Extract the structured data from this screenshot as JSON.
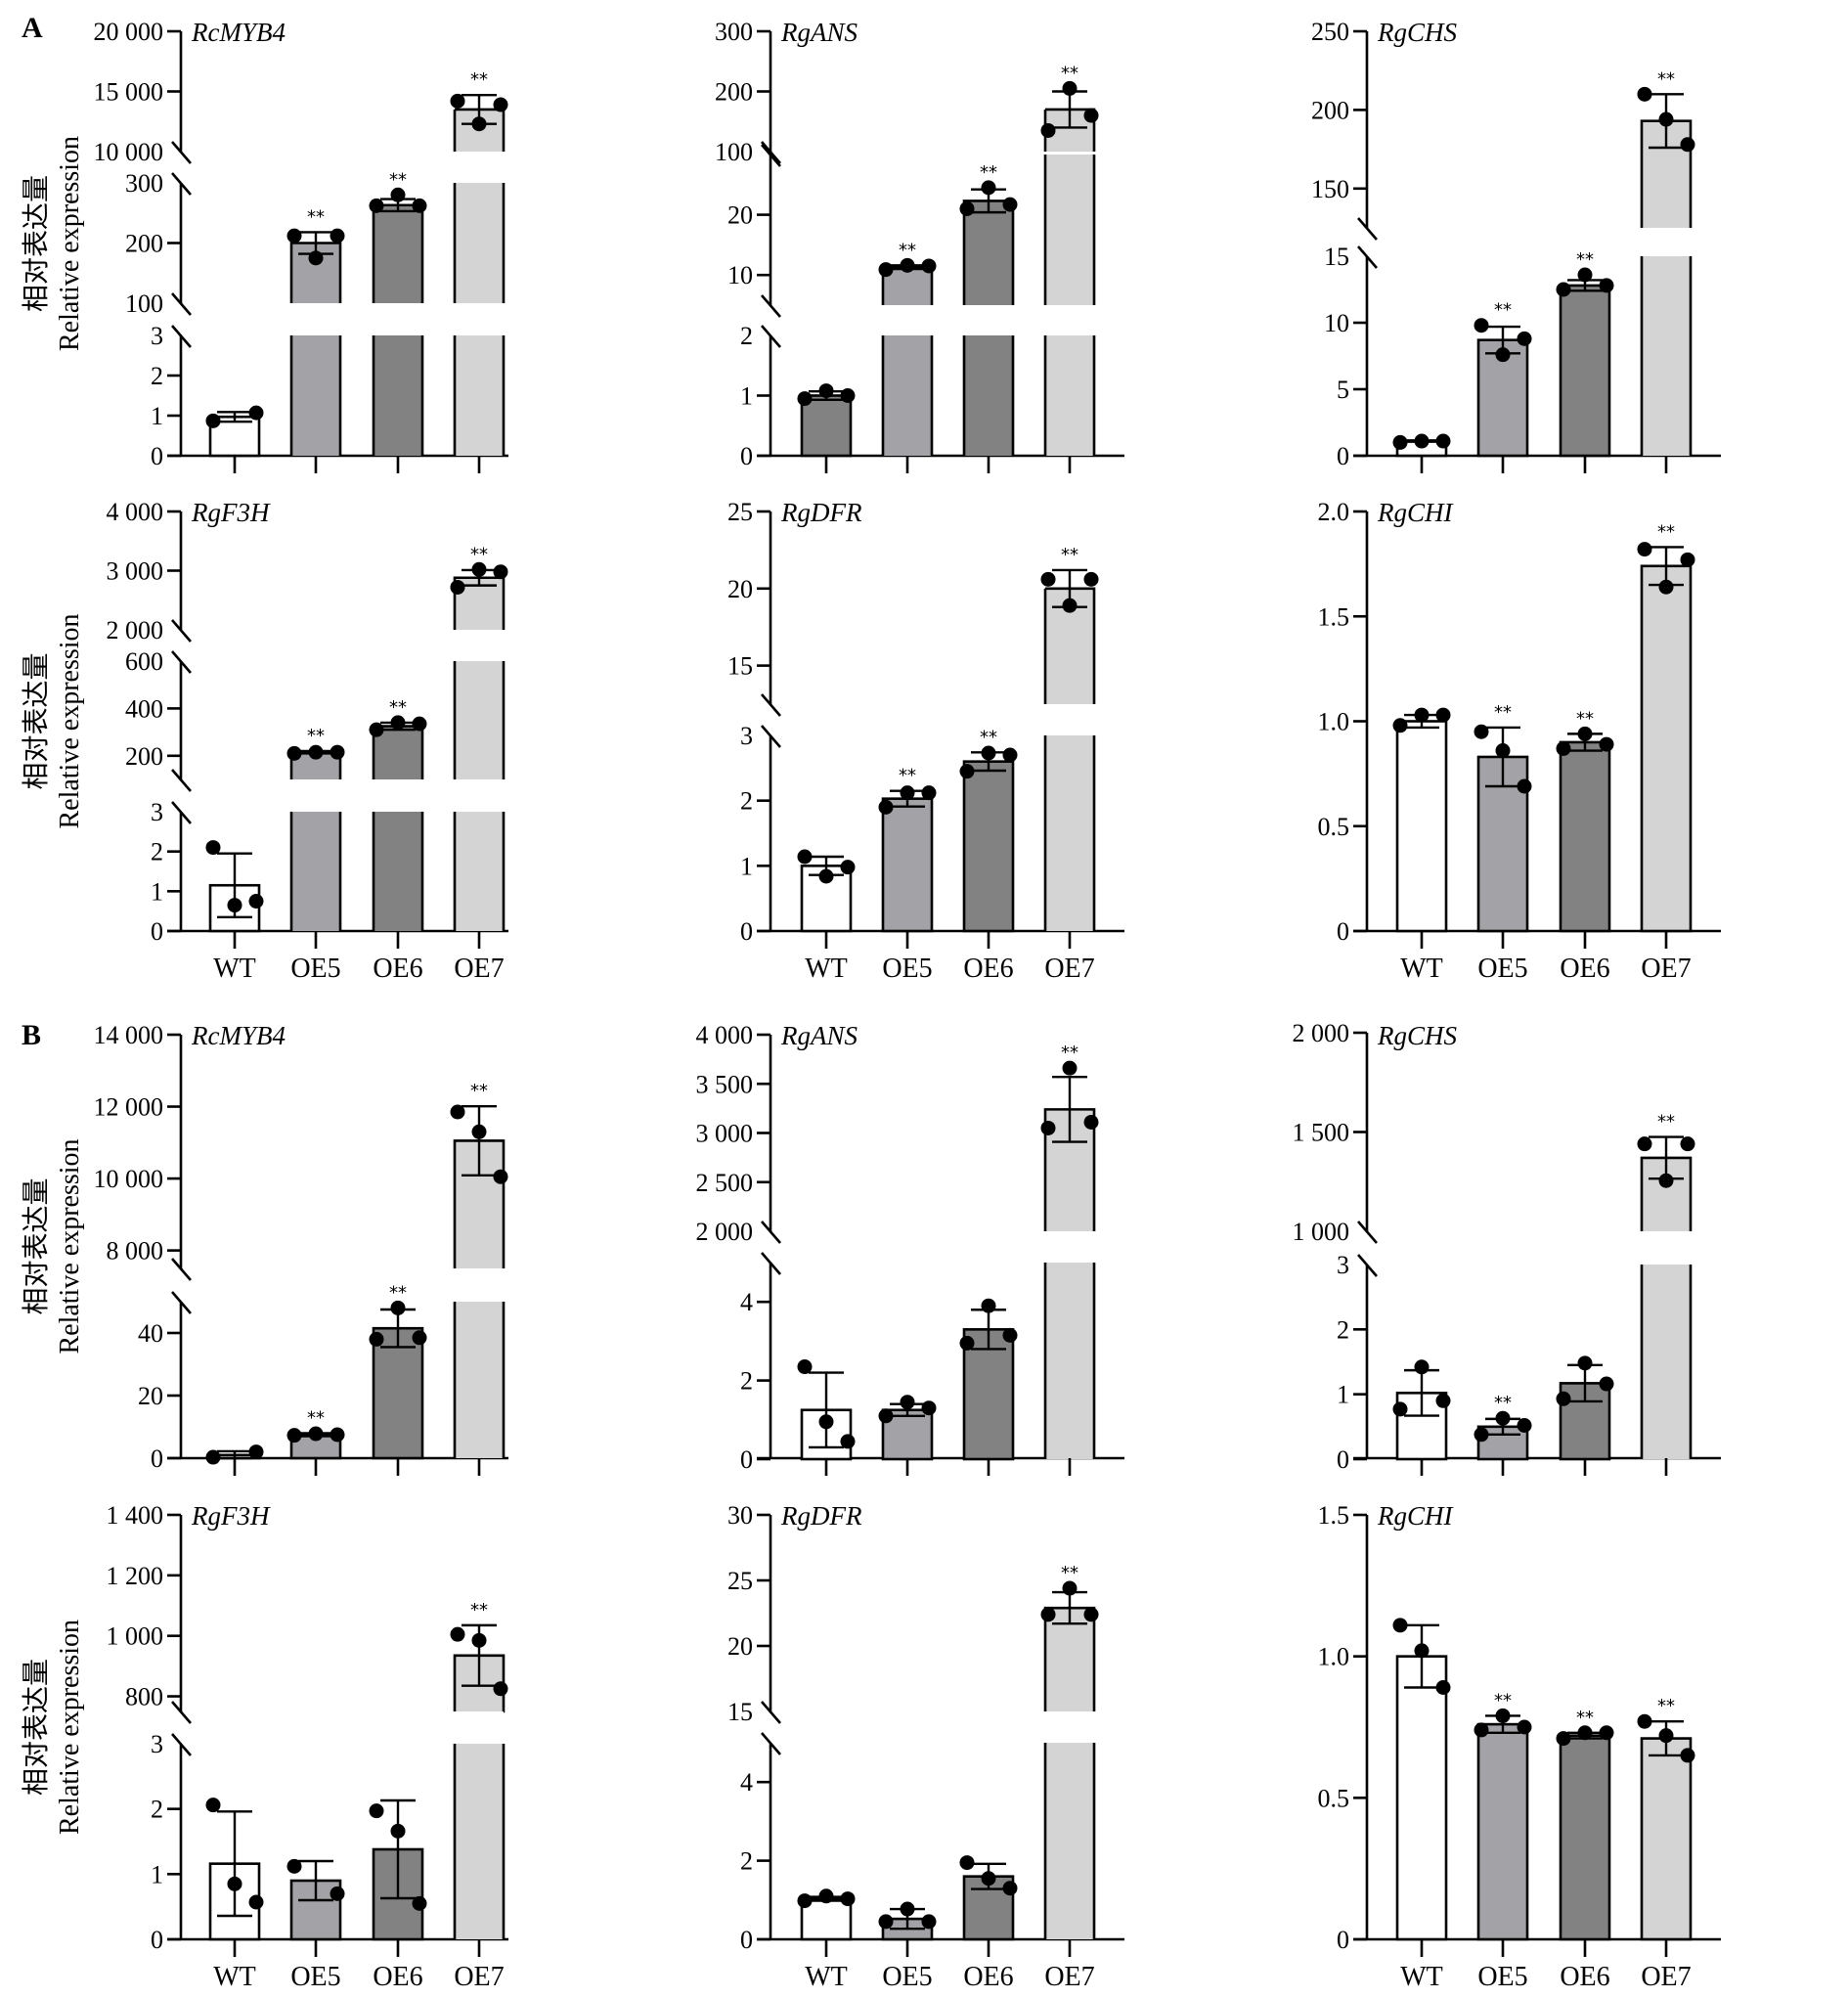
{
  "figure": {
    "y_axis_label_cn": "相对表达量",
    "y_axis_label_en": "Relative expression",
    "significance_mark": "**",
    "categories": [
      "WT",
      "OE5",
      "OE6",
      "OE7"
    ],
    "bar_colors": {
      "white": "#ffffff",
      "light_gray": "#a3a3a7",
      "dark_gray": "#828282",
      "pale_gray": "#d4d4d4"
    }
  },
  "chart_data": [
    {
      "panel": "A",
      "gene": "RcMYB4",
      "type": "bar",
      "categories": [
        "WT",
        "OE5",
        "OE6",
        "OE7"
      ],
      "colors": [
        "#ffffff",
        "#a3a3a7",
        "#828282",
        "#d4d4d4"
      ],
      "values": [
        0.97,
        200,
        263,
        13500
      ],
      "errors": [
        0.12,
        18,
        10,
        1200
      ],
      "points": [
        [
          0.87,
          1.07
        ],
        [
          212,
          175,
          212
        ],
        [
          262,
          280,
          262
        ],
        [
          14200,
          12300,
          13900
        ]
      ],
      "significant": [
        false,
        true,
        true,
        true
      ],
      "y_segments": [
        {
          "range": [
            0,
            3
          ],
          "ticks": [
            0,
            1,
            2,
            3
          ],
          "tick_labels": [
            "0",
            "1",
            "2",
            "3"
          ]
        },
        {
          "range": [
            100,
            300
          ],
          "ticks": [
            100,
            200,
            300
          ],
          "tick_labels": [
            "100",
            "200",
            "300"
          ]
        },
        {
          "range": [
            10000,
            20000
          ],
          "ticks": [
            10000,
            15000,
            20000
          ],
          "tick_labels": [
            "10 000",
            "15 000",
            "20 000"
          ]
        }
      ],
      "ylabel": "相对表达量 Relative expression",
      "show_xlabels": false
    },
    {
      "panel": "A",
      "gene": "RgANS",
      "type": "bar",
      "categories": [
        "WT",
        "OE5",
        "OE6",
        "OE7"
      ],
      "colors": [
        "#828282",
        "#a3a3a7",
        "#828282",
        "#d4d4d4"
      ],
      "values": [
        1.0,
        11.3,
        22.3,
        170
      ],
      "errors": [
        0.07,
        0.3,
        1.9,
        30
      ],
      "points": [
        [
          0.95,
          1.08,
          1.0
        ],
        [
          10.9,
          11.6,
          11.5
        ],
        [
          21.0,
          24.5,
          21.7
        ],
        [
          135,
          205,
          160
        ]
      ],
      "significant": [
        false,
        true,
        true,
        true
      ],
      "y_segments": [
        {
          "range": [
            0,
            2
          ],
          "ticks": [
            0,
            1,
            2
          ],
          "tick_labels": [
            "0",
            "1",
            "2"
          ]
        },
        {
          "range": [
            5,
            30
          ],
          "ticks": [
            10,
            20
          ],
          "tick_labels": [
            "10",
            "20"
          ]
        },
        {
          "range": [
            100,
            300
          ],
          "ticks": [
            100,
            200,
            300
          ],
          "tick_labels": [
            "100",
            "200",
            "300"
          ]
        }
      ],
      "show_xlabels": false
    },
    {
      "panel": "A",
      "gene": "RgCHS",
      "type": "bar",
      "categories": [
        "WT",
        "OE5",
        "OE6",
        "OE7"
      ],
      "colors": [
        "#ffffff",
        "#a3a3a7",
        "#828282",
        "#d4d4d4"
      ],
      "values": [
        1.1,
        8.7,
        12.8,
        193
      ],
      "errors": [
        0.05,
        1.0,
        0.4,
        17
      ],
      "points": [
        [
          1.0,
          1.1,
          1.1
        ],
        [
          9.8,
          7.6,
          8.8
        ],
        [
          12.5,
          13.6,
          12.8
        ],
        [
          210,
          194,
          178
        ]
      ],
      "significant": [
        false,
        true,
        true,
        true
      ],
      "y_segments": [
        {
          "range": [
            0,
            15
          ],
          "ticks": [
            0,
            5,
            10,
            15
          ],
          "tick_labels": [
            "0",
            "5",
            "10",
            "15"
          ]
        },
        {
          "range": [
            125,
            250
          ],
          "ticks": [
            150,
            200,
            250
          ],
          "tick_labels": [
            "150",
            "200",
            "250"
          ]
        }
      ],
      "show_xlabels": false
    },
    {
      "panel": "A",
      "gene": "RgF3H",
      "type": "bar",
      "categories": [
        "WT",
        "OE5",
        "OE6",
        "OE7"
      ],
      "colors": [
        "#ffffff",
        "#a3a3a7",
        "#828282",
        "#d4d4d4"
      ],
      "values": [
        1.15,
        215,
        325,
        2880
      ],
      "errors": [
        0.8,
        5,
        15,
        130
      ],
      "points": [
        [
          2.1,
          0.65,
          0.75
        ],
        [
          210,
          215,
          215
        ],
        [
          310,
          340,
          335
        ],
        [
          2720,
          3020,
          2980
        ]
      ],
      "significant": [
        false,
        true,
        true,
        true
      ],
      "y_segments": [
        {
          "range": [
            0,
            3
          ],
          "ticks": [
            0,
            1,
            2,
            3
          ],
          "tick_labels": [
            "0",
            "1",
            "2",
            "3"
          ]
        },
        {
          "range": [
            100,
            600
          ],
          "ticks": [
            200,
            400,
            600
          ],
          "tick_labels": [
            "200",
            "400",
            "600"
          ]
        },
        {
          "range": [
            2000,
            4000
          ],
          "ticks": [
            2000,
            3000,
            4000
          ],
          "tick_labels": [
            "2 000",
            "3 000",
            "4 000"
          ]
        }
      ],
      "ylabel": "相对表达量 Relative expression",
      "show_xlabels": true
    },
    {
      "panel": "A",
      "gene": "RgDFR",
      "type": "bar",
      "categories": [
        "WT",
        "OE5",
        "OE6",
        "OE7"
      ],
      "colors": [
        "#ffffff",
        "#a3a3a7",
        "#828282",
        "#d4d4d4"
      ],
      "values": [
        1.0,
        2.03,
        2.6,
        20.0
      ],
      "errors": [
        0.14,
        0.12,
        0.14,
        1.2
      ],
      "points": [
        [
          1.14,
          0.84,
          0.98
        ],
        [
          1.9,
          2.12,
          2.12
        ],
        [
          2.45,
          2.73,
          2.7
        ],
        [
          20.6,
          18.9,
          20.6
        ]
      ],
      "significant": [
        false,
        true,
        true,
        true
      ],
      "y_segments": [
        {
          "range": [
            0,
            3
          ],
          "ticks": [
            0,
            1,
            2,
            3
          ],
          "tick_labels": [
            "0",
            "1",
            "2",
            "3"
          ]
        },
        {
          "range": [
            12.5,
            25
          ],
          "ticks": [
            15,
            20,
            25
          ],
          "tick_labels": [
            "15",
            "20",
            "25"
          ]
        }
      ],
      "show_xlabels": true
    },
    {
      "panel": "A",
      "gene": "RgCHI",
      "type": "bar",
      "categories": [
        "WT",
        "OE5",
        "OE6",
        "OE7"
      ],
      "colors": [
        "#ffffff",
        "#a3a3a7",
        "#828282",
        "#d4d4d4"
      ],
      "values": [
        1.0,
        0.83,
        0.9,
        1.74
      ],
      "errors": [
        0.03,
        0.14,
        0.04,
        0.09
      ],
      "points": [
        [
          0.98,
          1.03,
          1.03
        ],
        [
          0.95,
          0.86,
          0.69
        ],
        [
          0.87,
          0.94,
          0.89
        ],
        [
          1.82,
          1.64,
          1.77
        ]
      ],
      "significant": [
        false,
        true,
        true,
        true
      ],
      "y_segments": [
        {
          "range": [
            0,
            2
          ],
          "ticks": [
            0,
            0.5,
            1.0,
            1.5,
            2.0
          ],
          "tick_labels": [
            "0",
            "0.5",
            "1.0",
            "1.5",
            "2.0"
          ]
        }
      ],
      "show_xlabels": true
    },
    {
      "panel": "B",
      "gene": "RcMYB4",
      "type": "bar",
      "categories": [
        "WT",
        "OE5",
        "OE6",
        "OE7"
      ],
      "colors": [
        "#ffffff",
        "#a3a3a7",
        "#828282",
        "#d4d4d4"
      ],
      "values": [
        1.0,
        7.5,
        41.5,
        11050
      ],
      "errors": [
        1.2,
        0.5,
        6.0,
        960
      ],
      "points": [
        [
          0.3,
          2.0
        ],
        [
          7.3,
          7.8,
          7.5
        ],
        [
          38,
          48,
          38.5
        ],
        [
          11850,
          11300,
          10050
        ]
      ],
      "significant": [
        false,
        true,
        true,
        true
      ],
      "y_segments": [
        {
          "range": [
            0,
            50
          ],
          "ticks": [
            0,
            20,
            40
          ],
          "tick_labels": [
            "0",
            "20",
            "40"
          ]
        },
        {
          "range": [
            7500,
            14000
          ],
          "ticks": [
            8000,
            10000,
            12000,
            14000
          ],
          "tick_labels": [
            "8 000",
            "10 000",
            "12 000",
            "14 000"
          ]
        }
      ],
      "ylabel": "相对表达量 Relative expression",
      "show_xlabels": false
    },
    {
      "panel": "B",
      "gene": "RgANS",
      "type": "bar",
      "categories": [
        "WT",
        "OE5",
        "OE6",
        "OE7"
      ],
      "colors": [
        "#ffffff",
        "#a3a3a7",
        "#828282",
        "#d4d4d4"
      ],
      "values": [
        1.25,
        1.25,
        3.3,
        3240
      ],
      "errors": [
        0.95,
        0.15,
        0.5,
        330
      ],
      "points": [
        [
          2.35,
          0.95,
          0.45
        ],
        [
          1.1,
          1.45,
          1.3
        ],
        [
          2.95,
          3.9,
          3.15
        ],
        [
          3050,
          3660,
          3110
        ]
      ],
      "significant": [
        false,
        false,
        false,
        true
      ],
      "y_segments": [
        {
          "range": [
            0,
            5
          ],
          "ticks": [
            0,
            2,
            4
          ],
          "tick_labels": [
            "0",
            "2",
            "4"
          ]
        },
        {
          "range": [
            2000,
            4000
          ],
          "ticks": [
            2000,
            2500,
            3000,
            3500,
            4000
          ],
          "tick_labels": [
            "2 000",
            "2 500",
            "3 000",
            "3 500",
            "4 000"
          ]
        }
      ],
      "show_xlabels": false
    },
    {
      "panel": "B",
      "gene": "RgCHS",
      "type": "bar",
      "categories": [
        "WT",
        "OE5",
        "OE6",
        "OE7"
      ],
      "colors": [
        "#ffffff",
        "#a3a3a7",
        "#828282",
        "#d4d4d4"
      ],
      "values": [
        1.02,
        0.5,
        1.17,
        1370
      ],
      "errors": [
        0.35,
        0.12,
        0.28,
        105
      ],
      "points": [
        [
          0.77,
          1.42,
          0.9
        ],
        [
          0.38,
          0.63,
          0.52
        ],
        [
          0.93,
          1.48,
          1.16
        ],
        [
          1440,
          1255,
          1440
        ]
      ],
      "significant": [
        false,
        true,
        false,
        true
      ],
      "y_segments": [
        {
          "range": [
            0,
            3
          ],
          "ticks": [
            0,
            1,
            2,
            3
          ],
          "tick_labels": [
            "0",
            "1",
            "2",
            "3"
          ]
        },
        {
          "range": [
            1000,
            2000
          ],
          "ticks": [
            1000,
            1500,
            2000
          ],
          "tick_labels": [
            "1 000",
            "1 500",
            "2 000"
          ]
        }
      ],
      "show_xlabels": false
    },
    {
      "panel": "B",
      "gene": "RgF3H",
      "type": "bar",
      "categories": [
        "WT",
        "OE5",
        "OE6",
        "OE7"
      ],
      "colors": [
        "#ffffff",
        "#a3a3a7",
        "#828282",
        "#d4d4d4"
      ],
      "values": [
        1.16,
        0.9,
        1.38,
        935
      ],
      "errors": [
        0.8,
        0.3,
        0.75,
        100
      ],
      "points": [
        [
          2.06,
          0.85,
          0.57
        ],
        [
          1.12,
          0.7
        ],
        [
          1.97,
          1.66,
          0.55
        ],
        [
          1005,
          985,
          825
        ]
      ],
      "significant": [
        false,
        false,
        false,
        true
      ],
      "y_segments": [
        {
          "range": [
            0,
            3
          ],
          "ticks": [
            0,
            1,
            2,
            3
          ],
          "tick_labels": [
            "0",
            "1",
            "2",
            "3"
          ]
        },
        {
          "range": [
            750,
            1400
          ],
          "ticks": [
            800,
            1000,
            1200,
            1400
          ],
          "tick_labels": [
            "800",
            "1 000",
            "1 200",
            "1 400"
          ]
        }
      ],
      "ylabel": "相对表达量 Relative expression",
      "show_xlabels": true
    },
    {
      "panel": "B",
      "gene": "RgDFR",
      "type": "bar",
      "categories": [
        "WT",
        "OE5",
        "OE6",
        "OE7"
      ],
      "colors": [
        "#ffffff",
        "#a3a3a7",
        "#828282",
        "#d4d4d4"
      ],
      "values": [
        1.03,
        0.52,
        1.6,
        22.9
      ],
      "errors": [
        0.05,
        0.25,
        0.32,
        1.2
      ],
      "points": [
        [
          0.98,
          1.1,
          1.03
        ],
        [
          0.45,
          0.77,
          0.45
        ],
        [
          1.95,
          1.55,
          1.3
        ],
        [
          22.4,
          24.4,
          22.4
        ]
      ],
      "significant": [
        false,
        false,
        false,
        true
      ],
      "y_segments": [
        {
          "range": [
            0,
            5
          ],
          "ticks": [
            0,
            2,
            4
          ],
          "tick_labels": [
            "0",
            "2",
            "4"
          ]
        },
        {
          "range": [
            15,
            30
          ],
          "ticks": [
            15,
            20,
            25,
            30
          ],
          "tick_labels": [
            "15",
            "20",
            "25",
            "30"
          ]
        }
      ],
      "show_xlabels": true
    },
    {
      "panel": "B",
      "gene": "RgCHI",
      "type": "bar",
      "categories": [
        "WT",
        "OE5",
        "OE6",
        "OE7"
      ],
      "colors": [
        "#ffffff",
        "#a3a3a7",
        "#828282",
        "#d4d4d4"
      ],
      "values": [
        1.0,
        0.76,
        0.72,
        0.71
      ],
      "errors": [
        0.11,
        0.03,
        0.01,
        0.06
      ],
      "points": [
        [
          1.11,
          1.02,
          0.89
        ],
        [
          0.74,
          0.79,
          0.75
        ],
        [
          0.71,
          0.73,
          0.73
        ],
        [
          0.77,
          0.72,
          0.65
        ]
      ],
      "significant": [
        false,
        true,
        true,
        true
      ],
      "y_segments": [
        {
          "range": [
            0,
            1.5
          ],
          "ticks": [
            0,
            0.5,
            1.0,
            1.5
          ],
          "tick_labels": [
            "0",
            "0.5",
            "1.0",
            "1.5"
          ]
        }
      ],
      "show_xlabels": true
    }
  ]
}
